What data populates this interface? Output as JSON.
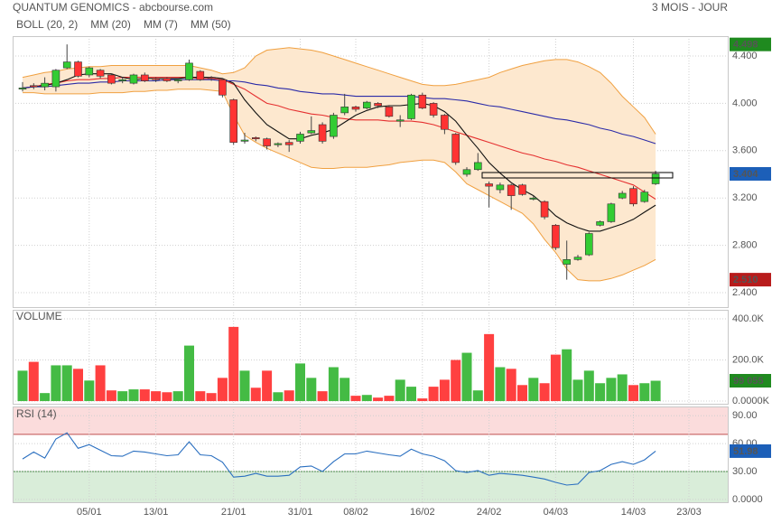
{
  "chart_data": [
    {
      "type": "candlestick",
      "title": "QUANTUM GENOMICS - abcbourse.com",
      "subtitle": "3 MOIS - JOUR",
      "up_color": "#33cc33",
      "down_color": "#ff3333",
      "open": [
        4.12,
        4.15,
        4.14,
        4.14,
        4.3,
        4.35,
        4.24,
        4.28,
        4.24,
        4.19,
        4.17,
        4.24,
        4.21,
        4.21,
        4.19,
        4.2,
        4.27,
        4.22,
        4.2,
        4.03,
        3.68,
        3.71,
        3.7,
        3.65,
        3.67,
        3.68,
        3.75,
        3.82,
        3.72,
        3.92,
        3.97,
        3.96,
        4.0,
        3.97,
        3.85,
        3.87,
        4.07,
        4.0,
        3.9,
        3.74,
        3.4,
        3.44,
        3.32,
        3.27,
        3.31,
        3.31,
        3.19,
        3.17,
        2.97,
        2.64,
        2.68,
        2.72,
        2.97,
        3.0,
        3.2,
        3.28,
        3.17,
        3.32,
        null,
        null,
        null
      ],
      "high": [
        4.18,
        4.17,
        4.22,
        4.29,
        4.498,
        4.36,
        4.31,
        4.29,
        4.25,
        4.22,
        4.25,
        4.26,
        4.22,
        4.22,
        4.21,
        4.37,
        4.28,
        4.23,
        4.21,
        4.04,
        3.75,
        3.72,
        3.71,
        3.67,
        3.69,
        3.76,
        3.89,
        3.84,
        3.92,
        4.08,
        3.98,
        4.02,
        4.01,
        3.98,
        3.9,
        4.08,
        4.09,
        4.01,
        3.91,
        3.75,
        3.46,
        3.58,
        3.34,
        3.33,
        3.32,
        3.32,
        3.22,
        3.18,
        2.98,
        2.84,
        2.72,
        2.91,
        3.01,
        3.16,
        3.26,
        3.3,
        3.27,
        3.43,
        null,
        null,
        null
      ],
      "low": [
        4.1,
        4.12,
        4.11,
        4.1,
        4.29,
        4.22,
        4.22,
        4.21,
        4.16,
        4.17,
        4.16,
        4.18,
        4.18,
        4.18,
        4.17,
        4.19,
        4.19,
        4.19,
        4.05,
        3.65,
        3.66,
        3.68,
        3.61,
        3.63,
        3.59,
        3.66,
        3.74,
        3.66,
        3.7,
        3.9,
        3.93,
        3.95,
        3.96,
        3.88,
        3.8,
        3.86,
        3.95,
        3.88,
        3.74,
        3.48,
        3.38,
        3.43,
        3.12,
        3.24,
        3.1,
        3.22,
        3.18,
        3.02,
        2.76,
        2.51,
        2.67,
        2.71,
        2.96,
        2.99,
        3.19,
        3.13,
        3.16,
        3.31,
        null,
        null,
        null
      ],
      "close": [
        4.13,
        4.14,
        4.17,
        4.28,
        4.35,
        4.23,
        4.3,
        4.23,
        4.17,
        4.2,
        4.24,
        4.19,
        4.2,
        4.19,
        4.2,
        4.34,
        4.2,
        4.21,
        4.07,
        3.67,
        3.69,
        3.7,
        3.64,
        3.66,
        3.65,
        3.74,
        3.77,
        3.68,
        3.9,
        3.97,
        3.95,
        4.01,
        3.98,
        3.89,
        3.86,
        4.07,
        3.96,
        3.9,
        3.78,
        3.5,
        3.44,
        3.5,
        3.3,
        3.31,
        3.22,
        3.23,
        3.2,
        3.04,
        2.78,
        2.68,
        2.7,
        2.9,
        3.0,
        3.15,
        3.24,
        3.15,
        3.25,
        3.404,
        null,
        null,
        null
      ],
      "series": [
        {
          "name": "BOLL (20, 2)",
          "color": "#f0a040",
          "fill": "#fde8cf",
          "upper": [
            4.22,
            4.24,
            4.26,
            4.27,
            4.29,
            4.3,
            4.31,
            4.31,
            4.32,
            4.32,
            4.32,
            4.32,
            4.32,
            4.32,
            4.32,
            4.32,
            4.3,
            4.28,
            4.25,
            4.26,
            4.3,
            4.4,
            4.45,
            4.46,
            4.47,
            4.46,
            4.45,
            4.43,
            4.4,
            4.37,
            4.34,
            4.31,
            4.28,
            4.25,
            4.22,
            4.19,
            4.16,
            4.15,
            4.15,
            4.16,
            4.18,
            4.2,
            4.22,
            4.26,
            4.29,
            4.32,
            4.34,
            4.36,
            4.37,
            4.37,
            4.35,
            4.31,
            4.26,
            4.17,
            4.06,
            3.97,
            3.88,
            3.74,
            null,
            null,
            null
          ],
          "lower": [
            4.09,
            4.09,
            4.08,
            4.08,
            4.08,
            4.08,
            4.08,
            4.09,
            4.09,
            4.09,
            4.1,
            4.1,
            4.11,
            4.11,
            4.12,
            4.12,
            4.12,
            4.11,
            4.1,
            3.9,
            3.73,
            3.67,
            3.62,
            3.58,
            3.54,
            3.5,
            3.46,
            3.45,
            3.45,
            3.46,
            3.46,
            3.46,
            3.47,
            3.48,
            3.5,
            3.51,
            3.52,
            3.52,
            3.5,
            3.42,
            3.32,
            3.27,
            3.22,
            3.17,
            3.12,
            3.07,
            2.98,
            2.85,
            2.74,
            2.6,
            2.51,
            2.5,
            2.5,
            2.52,
            2.55,
            2.59,
            2.63,
            2.68,
            null,
            null,
            null
          ]
        },
        {
          "name": "MM (20)",
          "color": "#e53030",
          "values": [
            4.13,
            4.14,
            4.16,
            4.17,
            4.19,
            4.2,
            4.2,
            4.21,
            4.21,
            4.22,
            4.22,
            4.22,
            4.22,
            4.22,
            4.22,
            4.22,
            4.21,
            4.21,
            4.2,
            4.16,
            4.12,
            4.06,
            4.0,
            3.98,
            3.95,
            3.93,
            3.91,
            3.9,
            3.88,
            3.87,
            3.86,
            3.86,
            3.86,
            3.85,
            3.85,
            3.85,
            3.84,
            3.82,
            3.79,
            3.76,
            3.73,
            3.7,
            3.67,
            3.64,
            3.61,
            3.58,
            3.56,
            3.53,
            3.51,
            3.48,
            3.46,
            3.43,
            3.4,
            3.37,
            3.34,
            3.31,
            3.25,
            3.19,
            null,
            null,
            null
          ]
        },
        {
          "name": "MM (7)",
          "color": "#111111",
          "values": [
            4.13,
            4.14,
            4.15,
            4.17,
            4.2,
            4.24,
            4.25,
            4.25,
            4.25,
            4.22,
            4.2,
            4.21,
            4.21,
            4.21,
            4.21,
            4.22,
            4.22,
            4.22,
            4.21,
            4.17,
            4.03,
            3.92,
            3.82,
            3.76,
            3.7,
            3.7,
            3.73,
            3.75,
            3.78,
            3.84,
            3.9,
            3.94,
            3.97,
            3.98,
            3.98,
            3.99,
            4.0,
            3.98,
            3.93,
            3.85,
            3.73,
            3.62,
            3.5,
            3.41,
            3.33,
            3.27,
            3.22,
            3.14,
            3.05,
            2.99,
            2.95,
            2.92,
            2.92,
            2.95,
            2.98,
            3.02,
            3.08,
            3.14,
            null,
            null,
            null
          ]
        },
        {
          "name": "MM (50)",
          "color": "#2b2ba8",
          "values": [
            4.13,
            4.14,
            4.14,
            4.15,
            4.16,
            4.17,
            4.17,
            4.18,
            4.18,
            4.19,
            4.19,
            4.19,
            4.19,
            4.2,
            4.2,
            4.2,
            4.2,
            4.2,
            4.19,
            4.19,
            4.18,
            4.16,
            4.15,
            4.13,
            4.12,
            4.1,
            4.09,
            4.08,
            4.08,
            4.07,
            4.06,
            4.06,
            4.06,
            4.06,
            4.06,
            4.06,
            4.05,
            4.04,
            4.04,
            4.03,
            4.02,
            4.0,
            3.98,
            3.97,
            3.95,
            3.93,
            3.91,
            3.89,
            3.87,
            3.86,
            3.84,
            3.82,
            3.79,
            3.77,
            3.74,
            3.72,
            3.69,
            3.66,
            null,
            null,
            null
          ]
        }
      ],
      "ylim": [
        2.278,
        4.568
      ],
      "yticks": [
        {
          "value": 2.4,
          "label": "2.400"
        },
        {
          "value": 2.8,
          "label": "2.800"
        },
        {
          "value": 3.2,
          "label": "3.200"
        },
        {
          "value": 3.6,
          "label": "3.600"
        },
        {
          "value": 4.0,
          "label": "4.000"
        },
        {
          "value": 4.4,
          "label": "4.400"
        }
      ],
      "grid": true,
      "annotations": [
        {
          "value": 4.498,
          "label": "4.498",
          "color": "#1f8a1f"
        },
        {
          "value": 3.404,
          "label": "3.404",
          "color": "#1c5fb8"
        },
        {
          "value": 2.51,
          "label": "2.510",
          "color": "#b81c1c"
        }
      ]
    },
    {
      "type": "bar",
      "title": "VOLUME",
      "title_color": "#33aa33",
      "values": [
        148000,
        191000,
        39000,
        174000,
        174000,
        157000,
        100000,
        174000,
        52000,
        48000,
        57000,
        57000,
        48000,
        43000,
        48000,
        270000,
        48000,
        39000,
        113000,
        361000,
        148000,
        65000,
        148000,
        43000,
        52000,
        183000,
        113000,
        48000,
        165000,
        113000,
        26000,
        30000,
        17000,
        26000,
        104000,
        70000,
        13000,
        70000,
        104000,
        200000,
        235000,
        52000,
        326000,
        165000,
        157000,
        78000,
        113000,
        87000,
        226000,
        252000,
        104000,
        148000,
        87000,
        113000,
        130000,
        78000,
        87000,
        99055,
        null,
        null,
        null
      ],
      "ylim": [
        -13000,
        444000
      ],
      "yticks": [
        {
          "value": 0,
          "label": "0.0000K"
        },
        {
          "value": 200000,
          "label": "200.0K"
        },
        {
          "value": 400000,
          "label": "400.0K"
        }
      ],
      "grid": true,
      "annotations": [
        {
          "value": 99055,
          "label": "99 055",
          "color": "#1f8a1f"
        }
      ]
    },
    {
      "type": "line",
      "title": "RSI (14)",
      "title_color": "#2255aa",
      "color": "#2a6fc0",
      "categories": [
        null,
        null,
        null,
        null,
        null,
        null,
        "05/01",
        null,
        null,
        null,
        null,
        null,
        "13/01",
        null,
        null,
        null,
        null,
        null,
        null,
        "21/01",
        null,
        null,
        null,
        null,
        null,
        "31/01",
        null,
        null,
        null,
        null,
        "08/02",
        null,
        null,
        null,
        null,
        null,
        "16/02",
        null,
        null,
        null,
        null,
        null,
        "24/02",
        null,
        null,
        null,
        null,
        null,
        "04/03",
        null,
        null,
        null,
        null,
        null,
        null,
        "14/03",
        null,
        null,
        null,
        null,
        "23/03"
      ],
      "values": [
        43.5,
        51,
        44.5,
        65,
        71.6,
        55,
        59,
        53,
        47,
        46.5,
        52,
        51,
        49,
        47,
        48,
        62,
        48,
        47,
        40,
        24,
        25,
        28,
        25,
        25,
        26,
        35,
        36,
        30,
        40.6,
        49,
        49,
        52,
        50,
        48,
        46.5,
        54,
        49,
        46.5,
        41.6,
        31,
        29,
        31,
        26,
        28,
        27,
        26,
        24,
        22,
        18.4,
        15.5,
        16.5,
        29,
        31,
        37.7,
        40.6,
        37.7,
        42.6,
        51.98,
        null,
        null,
        null
      ],
      "ylim": [
        -3,
        100
      ],
      "yticks": [
        {
          "value": 0,
          "label": "0.0000"
        },
        {
          "value": 30,
          "label": "30.00"
        },
        {
          "value": 60,
          "label": "60.00"
        },
        {
          "value": 90,
          "label": "90.00"
        }
      ],
      "grid": true,
      "zones": [
        {
          "above": 70,
          "color": "#fbdcdc",
          "line": "#c05050"
        },
        {
          "below": 30,
          "color": "#d9edd9",
          "line": "#4a8a4a"
        }
      ],
      "annotations": [
        {
          "value": 51.98,
          "color": "#1c5fb8"
        }
      ]
    }
  ]
}
